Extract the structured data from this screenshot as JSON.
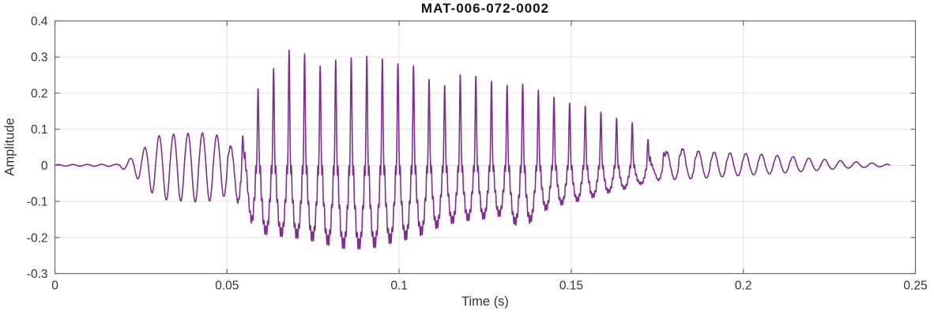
{
  "page": {
    "background": "#ffffff"
  },
  "chart_data": {
    "type": "line",
    "title": "MAT-006-072-0002",
    "xlabel": "Time (s)",
    "ylabel": "Amplitude",
    "xlim": [
      0,
      0.25
    ],
    "ylim": [
      -0.3,
      0.4
    ],
    "xticks": [
      0,
      0.05,
      0.1,
      0.15,
      0.2,
      0.25
    ],
    "xtick_labels": [
      "0",
      "0.05",
      "0.1",
      "0.15",
      "0.2",
      "0.25"
    ],
    "yticks": [
      -0.3,
      -0.2,
      -0.1,
      0,
      0.1,
      0.2,
      0.3,
      0.4
    ],
    "ytick_labels": [
      "-0.3",
      "-0.2",
      "-0.1",
      "0",
      "0.1",
      "0.2",
      "0.3",
      "0.4"
    ],
    "grid": true,
    "box": true,
    "tick_direction": "in",
    "line_color": "#7E2F8E",
    "axis_color": "#6b6b6b",
    "grid_color": "#e2e2e2",
    "tick_label_color": "#333333",
    "series_name": "waveform",
    "signal": {
      "kind": "speech-like waveform described by pitch, harmonic mix and amplitude envelopes",
      "duration_s": 0.2425,
      "f0_hz": [
        [
          0,
          240
        ],
        [
          0.05,
          238
        ],
        [
          0.056,
          222
        ],
        [
          0.2425,
          218
        ]
      ],
      "harmonics": [
        1,
        0.62,
        0.5,
        0.42,
        0.33,
        0.25,
        0.18,
        0.12
      ],
      "richness": [
        [
          0,
          0
        ],
        [
          0.048,
          0.04
        ],
        [
          0.054,
          0.55
        ],
        [
          0.058,
          1
        ],
        [
          0.168,
          1
        ],
        [
          0.178,
          0.35
        ],
        [
          0.19,
          0.2
        ],
        [
          0.215,
          0.12
        ],
        [
          0.235,
          0
        ],
        [
          0.2425,
          0
        ]
      ],
      "envelope_positive": [
        [
          0,
          0.002
        ],
        [
          0.018,
          0.003
        ],
        [
          0.022,
          0.02
        ],
        [
          0.026,
          0.05
        ],
        [
          0.03,
          0.085
        ],
        [
          0.036,
          0.092
        ],
        [
          0.043,
          0.095
        ],
        [
          0.05,
          0.085
        ],
        [
          0.054,
          0.12
        ],
        [
          0.058,
          0.2
        ],
        [
          0.063,
          0.26
        ],
        [
          0.067,
          0.32
        ],
        [
          0.072,
          0.315
        ],
        [
          0.076,
          0.27
        ],
        [
          0.08,
          0.29
        ],
        [
          0.088,
          0.3
        ],
        [
          0.093,
          0.305
        ],
        [
          0.097,
          0.285
        ],
        [
          0.105,
          0.275
        ],
        [
          0.11,
          0.225
        ],
        [
          0.115,
          0.22
        ],
        [
          0.119,
          0.265
        ],
        [
          0.1235,
          0.24
        ],
        [
          0.128,
          0.23
        ],
        [
          0.132,
          0.22
        ],
        [
          0.136,
          0.225
        ],
        [
          0.14,
          0.21
        ],
        [
          0.144,
          0.19
        ],
        [
          0.148,
          0.185
        ],
        [
          0.151,
          0.16
        ],
        [
          0.155,
          0.165
        ],
        [
          0.16,
          0.14
        ],
        [
          0.165,
          0.125
        ],
        [
          0.169,
          0.115
        ],
        [
          0.174,
          0.09
        ],
        [
          0.178,
          0.075
        ],
        [
          0.183,
          0.08
        ],
        [
          0.187,
          0.06
        ],
        [
          0.192,
          0.05
        ],
        [
          0.198,
          0.045
        ],
        [
          0.205,
          0.04
        ],
        [
          0.212,
          0.032
        ],
        [
          0.22,
          0.022
        ],
        [
          0.228,
          0.014
        ],
        [
          0.235,
          0.008
        ],
        [
          0.242,
          0.003
        ],
        [
          0.2425,
          0.001
        ]
      ],
      "envelope_negative": [
        [
          0,
          0.002
        ],
        [
          0.018,
          0.003
        ],
        [
          0.022,
          0.02
        ],
        [
          0.026,
          0.055
        ],
        [
          0.03,
          0.095
        ],
        [
          0.036,
          0.1
        ],
        [
          0.043,
          0.105
        ],
        [
          0.05,
          0.09
        ],
        [
          0.054,
          0.13
        ],
        [
          0.058,
          0.185
        ],
        [
          0.063,
          0.195
        ],
        [
          0.069,
          0.2
        ],
        [
          0.075,
          0.21
        ],
        [
          0.083,
          0.23
        ],
        [
          0.088,
          0.232
        ],
        [
          0.092,
          0.23
        ],
        [
          0.098,
          0.215
        ],
        [
          0.105,
          0.2
        ],
        [
          0.112,
          0.17
        ],
        [
          0.118,
          0.155
        ],
        [
          0.124,
          0.15
        ],
        [
          0.13,
          0.14
        ],
        [
          0.136,
          0.18
        ],
        [
          0.141,
          0.13
        ],
        [
          0.147,
          0.11
        ],
        [
          0.152,
          0.1
        ],
        [
          0.158,
          0.085
        ],
        [
          0.163,
          0.07
        ],
        [
          0.17,
          0.06
        ],
        [
          0.175,
          0.05
        ],
        [
          0.18,
          0.045
        ],
        [
          0.19,
          0.038
        ],
        [
          0.2,
          0.03
        ],
        [
          0.21,
          0.024
        ],
        [
          0.22,
          0.016
        ],
        [
          0.23,
          0.008
        ],
        [
          0.242,
          0.003
        ],
        [
          0.2425,
          0.001
        ]
      ]
    }
  }
}
